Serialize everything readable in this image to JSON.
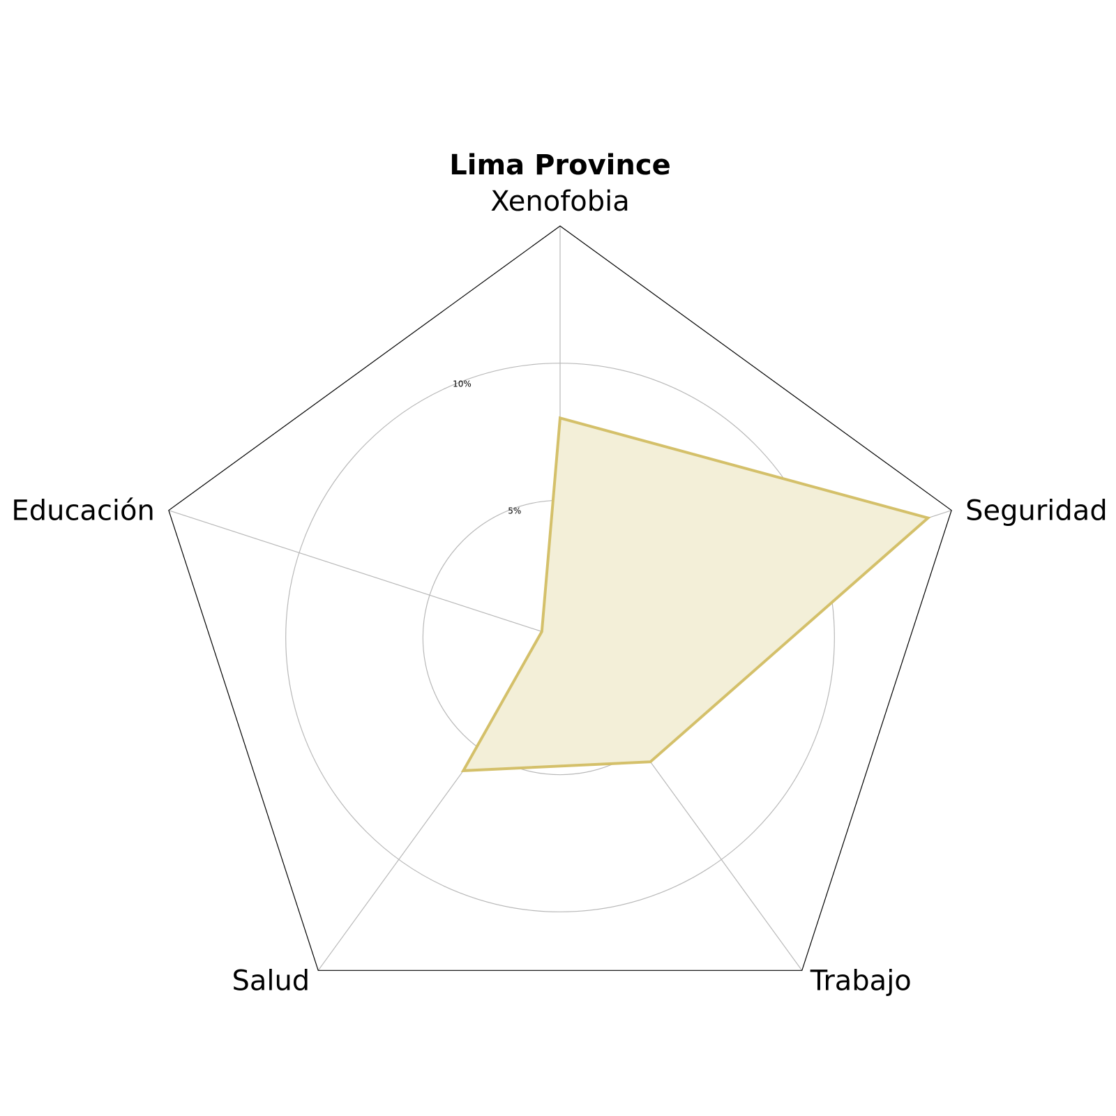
{
  "chart_data": {
    "type": "radar",
    "title": "Lima Province",
    "categories": [
      "Xenofobia",
      "Seguridad",
      "Trabajo",
      "Salud",
      "Educación"
    ],
    "series": [
      {
        "values": [
          8.0,
          14.1,
          5.6,
          6.0,
          0.7
        ]
      }
    ],
    "radial_ticks": [
      {
        "value": 5,
        "label": "5%"
      },
      {
        "value": 10,
        "label": "10%"
      }
    ],
    "rlim": [
      0,
      15
    ],
    "grid": true,
    "colors": {
      "series_line": "#d4c06a",
      "series_fill": "#f3efd8",
      "grid": "#b8b8b8",
      "frame": "#000000"
    }
  }
}
